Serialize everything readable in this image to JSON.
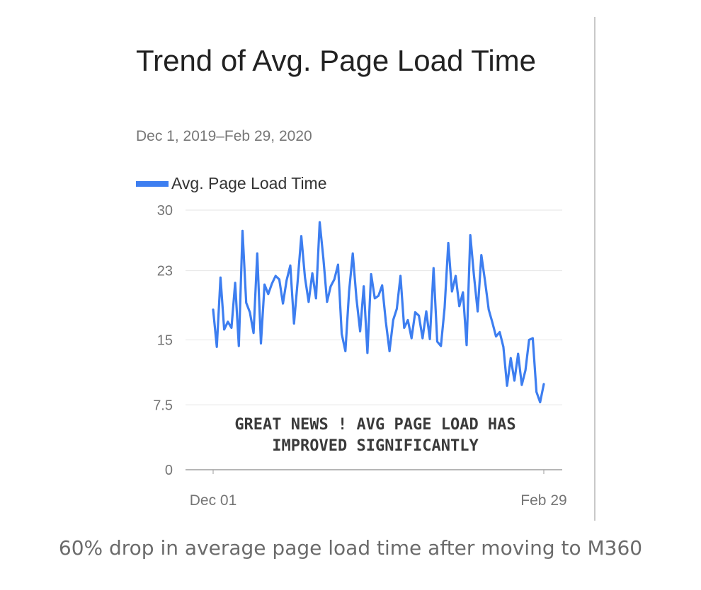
{
  "chart_data": {
    "type": "line",
    "title": "Trend of Avg. Page Load Time",
    "subtitle": "Dec 1, 2019–Feb 29, 2020",
    "legend": [
      "Avg. Page Load Time"
    ],
    "legend_position": "top-left",
    "series": [
      {
        "name": "Avg. Page Load Time",
        "color": "#3d7ef0",
        "values": [
          18.5,
          14.2,
          22.2,
          16.2,
          17.1,
          16.4,
          21.6,
          14.3,
          27.6,
          19.3,
          18.2,
          15.8,
          25,
          14.6,
          21.4,
          20.3,
          21.5,
          22.4,
          22,
          19.2,
          21.9,
          23.6,
          16.9,
          21.7,
          27,
          22.2,
          19.4,
          22.7,
          19.8,
          28.6,
          24.4,
          19.4,
          21.2,
          22,
          23.7,
          15.7,
          13.7,
          20.6,
          25,
          19.8,
          16,
          21.2,
          13.5,
          22.6,
          19.8,
          20.1,
          21.3,
          17.1,
          13.7,
          17.3,
          18.6,
          22.4,
          16.4,
          17.3,
          15.2,
          18.2,
          17.8,
          15.2,
          18.3,
          15.1,
          23.3,
          14.8,
          14.3,
          18.7,
          26.2,
          20.6,
          22.4,
          18.9,
          20.5,
          14.4,
          27.1,
          22.4,
          18.3,
          24.8,
          21.8,
          18.5,
          17,
          15.4,
          15.9,
          14.2,
          9.7,
          12.9,
          10.3,
          13.4,
          9.8,
          11.5,
          15,
          15.2,
          9,
          7.8,
          9.9
        ]
      }
    ],
    "x_start_label": "Dec 01",
    "x_end_label": "Feb 29",
    "x_tick_labels": [
      "Dec 01",
      "Feb 29"
    ],
    "ylim": [
      0,
      30
    ],
    "y_ticks": [
      0,
      7.5,
      15,
      23,
      30
    ],
    "y_tick_labels": [
      "0",
      "7.5",
      "15",
      "23",
      "30"
    ],
    "grid": true,
    "annotation": [
      "GREAT NEWS ! AVG PAGE LOAD HAS",
      "IMPROVED SIGNIFICANTLY"
    ],
    "xlabel": "",
    "ylabel": ""
  },
  "caption": "60% drop in average page load time after moving to M360"
}
